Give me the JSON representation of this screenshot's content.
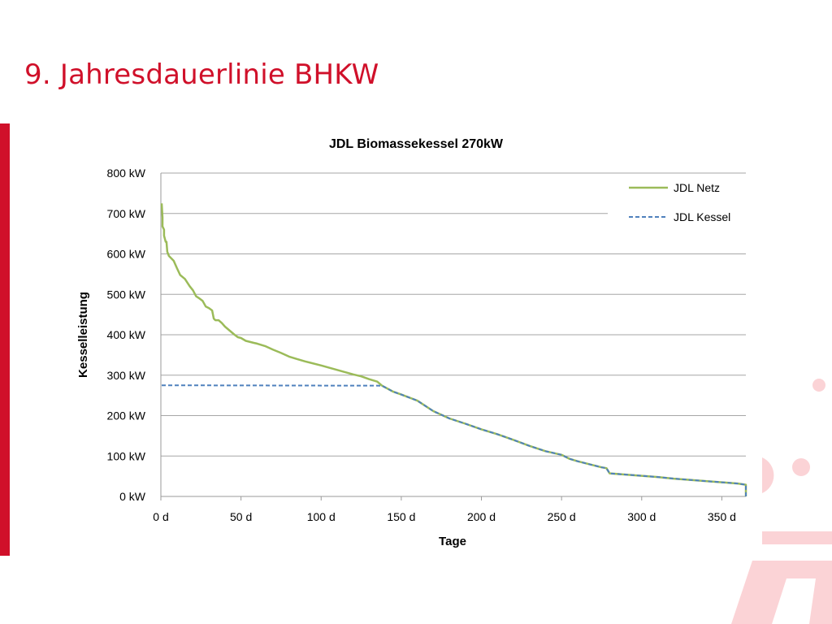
{
  "slide": {
    "title": "9. Jahresdauerlinie BHKW",
    "accent_color": "#d0102a",
    "deco_color": "#fbd3d6"
  },
  "chart_data": {
    "type": "line",
    "title": "JDL Biomassekessel 270kW",
    "xlabel": "Tage",
    "ylabel": "Kesselleistung",
    "xlim": [
      0,
      365
    ],
    "ylim": [
      0,
      800
    ],
    "x_ticks": [
      0,
      50,
      100,
      150,
      200,
      250,
      300,
      350
    ],
    "x_tick_labels": [
      "0 d",
      "50 d",
      "100 d",
      "150 d",
      "200 d",
      "250 d",
      "300 d",
      "350 d"
    ],
    "y_ticks": [
      0,
      100,
      200,
      300,
      400,
      500,
      600,
      700,
      800
    ],
    "y_tick_labels": [
      "0 kW",
      "100 kW",
      "200 kW",
      "300 kW",
      "400 kW",
      "500 kW",
      "600 kW",
      "700 kW",
      "800 kW"
    ],
    "grid": true,
    "legend_position": "top-right",
    "series": [
      {
        "name": "JDL Netz",
        "color": "#9bbb59",
        "style": "solid",
        "x": [
          0.5,
          1,
          1,
          2,
          2,
          3,
          3.5,
          4,
          5,
          8,
          10,
          12,
          15,
          18,
          19,
          20,
          22,
          24,
          26,
          28,
          30,
          32,
          33,
          34,
          36,
          38,
          40,
          43,
          46,
          48,
          50,
          53,
          55,
          58,
          60,
          65,
          70,
          75,
          80,
          85,
          90,
          100,
          110,
          120,
          125,
          130,
          135,
          138,
          145,
          150,
          160,
          170,
          180,
          190,
          200,
          210,
          220,
          230,
          240,
          250,
          255,
          260,
          270,
          275,
          278,
          280,
          290,
          300,
          310,
          320,
          330,
          340,
          350,
          360,
          365,
          365
        ],
        "values": [
          725,
          690,
          668,
          660,
          645,
          630,
          630,
          605,
          595,
          583,
          565,
          548,
          538,
          520,
          515,
          510,
          495,
          490,
          484,
          470,
          466,
          460,
          440,
          436,
          436,
          429,
          420,
          410,
          400,
          394,
          392,
          385,
          383,
          380,
          378,
          372,
          363,
          355,
          346,
          340,
          334,
          324,
          313,
          302,
          297,
          290,
          284,
          274,
          259,
          252,
          237,
          211,
          193,
          180,
          166,
          154,
          140,
          125,
          112,
          103,
          93,
          87,
          77,
          72,
          70,
          57,
          54,
          51,
          48,
          44,
          41,
          38,
          35,
          32,
          29,
          0
        ]
      },
      {
        "name": "JDL Kessel",
        "color": "#4f81bd",
        "style": "dashed",
        "x": [
          0.5,
          138,
          145,
          150,
          160,
          170,
          180,
          190,
          200,
          210,
          220,
          230,
          240,
          250,
          255,
          260,
          270,
          275,
          278,
          280,
          290,
          300,
          310,
          320,
          330,
          340,
          350,
          360,
          365,
          365
        ],
        "values": [
          275,
          274,
          259,
          252,
          237,
          211,
          193,
          180,
          166,
          154,
          140,
          125,
          112,
          103,
          93,
          87,
          77,
          72,
          70,
          57,
          54,
          51,
          48,
          44,
          41,
          38,
          35,
          32,
          29,
          0
        ]
      }
    ]
  }
}
